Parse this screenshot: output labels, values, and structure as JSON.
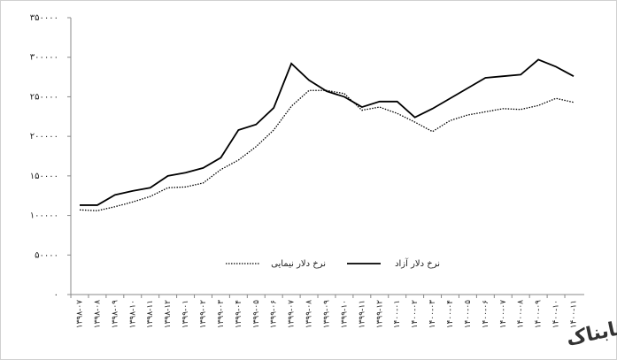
{
  "chart_data": {
    "type": "line",
    "categories": [
      "۱۳۹۸-۰۷",
      "۱۳۹۸-۰۸",
      "۱۳۹۸-۰۹",
      "۱۳۹۸-۱۰",
      "۱۳۹۸-۱۱",
      "۱۳۹۸-۱۲",
      "۱۳۹۹-۰۱",
      "۱۳۹۹-۰۲",
      "۱۳۹۹-۰۳",
      "۱۳۹۹-۰۴",
      "۱۳۹۹-۰۵",
      "۱۳۹۹-۰۶",
      "۱۳۹۹-۰۷",
      "۱۳۹۹-۰۸",
      "۱۳۹۹-۰۹",
      "۱۳۹۹-۱۰",
      "۱۳۹۹-۱۱",
      "۱۳۹۹-۱۲",
      "۱۴۰۰-۰۱",
      "۱۴۰۰-۰۲",
      "۱۴۰۰-۰۳",
      "۱۴۰۰-۰۴",
      "۱۴۰۰-۰۵",
      "۱۴۰۰-۰۶",
      "۱۴۰۰-۰۷",
      "۱۴۰۰-۰۸",
      "۱۴۰۰-۰۹",
      "۱۴۰۰-۱۰",
      "۱۴۰۰-۱۱"
    ],
    "series": [
      {
        "name": "نرخ دلار نیمایی",
        "color": "#000000",
        "dash": "dotted",
        "values": [
          107000,
          106000,
          111000,
          117000,
          124000,
          135000,
          136000,
          141000,
          158000,
          170000,
          187000,
          208000,
          238000,
          258000,
          258000,
          254000,
          233000,
          237000,
          229000,
          218000,
          206000,
          220000,
          227000,
          231000,
          235000,
          234000,
          239000,
          248000,
          243000
        ]
      },
      {
        "name": "نرخ دلار آزاد",
        "color": "#000000",
        "dash": "solid",
        "values": [
          113000,
          113000,
          126000,
          131000,
          135000,
          150000,
          154000,
          160000,
          173000,
          208000,
          215000,
          236000,
          292000,
          271000,
          257000,
          250000,
          237000,
          244000,
          244000,
          224000,
          235000,
          248000,
          261000,
          274000,
          276000,
          278000,
          297000,
          288000,
          276000
        ]
      }
    ],
    "ylim": [
      0,
      350000
    ],
    "yticks": [
      {
        "value": 0,
        "label": "۰"
      },
      {
        "value": 50000,
        "label": "۵۰۰۰۰"
      },
      {
        "value": 100000,
        "label": "۱۰۰۰۰۰"
      },
      {
        "value": 150000,
        "label": "۱۵۰۰۰۰"
      },
      {
        "value": 200000,
        "label": "۲۰۰۰۰۰"
      },
      {
        "value": 250000,
        "label": "۲۵۰۰۰۰"
      },
      {
        "value": 300000,
        "label": "۳۰۰۰۰۰"
      },
      {
        "value": 350000,
        "label": "۳۵۰۰۰۰"
      }
    ],
    "grid": false,
    "watermark": "تابناک"
  }
}
